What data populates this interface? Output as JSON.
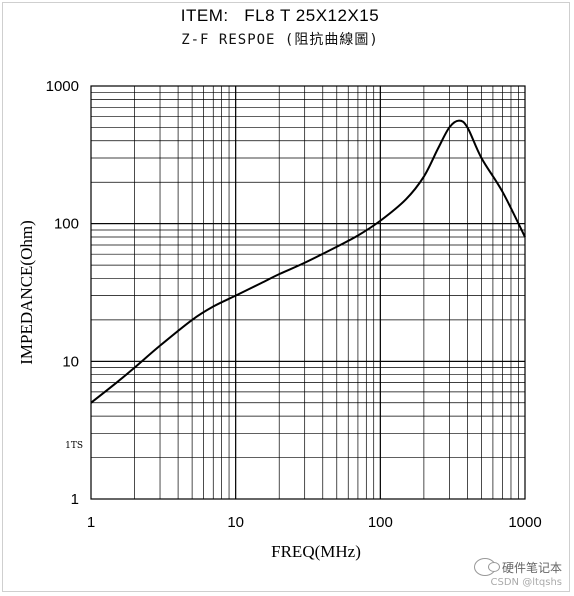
{
  "header": {
    "title": "ITEM:   FL8 T 25X12X15",
    "subtitle": "Z-F RESPOE (阻抗曲線圖)"
  },
  "watermark": {
    "name": "硬件笔记本",
    "source": "CSDN @ltqshs",
    "icon": "wechat-icon"
  },
  "chart_data": {
    "type": "line",
    "title": "ITEM:   FL8 T 25X12X15",
    "subtitle": "Z-F RESPOE (阻抗曲線圖)",
    "xlabel": "FREQ(MHz)",
    "ylabel": "IMPEDANCE(Ohm)",
    "x_scale": "log",
    "y_scale": "log",
    "xlim": [
      1,
      1000
    ],
    "ylim": [
      1,
      1000
    ],
    "x_ticks": [
      {
        "value": 1,
        "label": "1"
      },
      {
        "value": 10,
        "label": "10"
      },
      {
        "value": 100,
        "label": "100"
      },
      {
        "value": 1000,
        "label": "1000"
      }
    ],
    "y_ticks": [
      {
        "value": 1,
        "label": "1"
      },
      {
        "value": 10,
        "label": "10"
      },
      {
        "value": 100,
        "label": "100"
      },
      {
        "value": 1000,
        "label": "1000"
      }
    ],
    "annotation": {
      "text": "1TS",
      "x": 1,
      "y": 2.5
    },
    "grid": true,
    "series": [
      {
        "color": "#000000",
        "x": [
          1,
          1.5,
          2,
          3,
          5,
          7,
          10,
          15,
          20,
          30,
          50,
          70,
          100,
          150,
          200,
          250,
          300,
          350,
          400,
          500,
          700,
          1000
        ],
        "y": [
          5,
          7,
          9,
          13,
          20,
          25,
          30,
          37,
          43,
          52,
          68,
          82,
          105,
          150,
          220,
          350,
          500,
          560,
          500,
          300,
          170,
          80
        ]
      }
    ]
  }
}
